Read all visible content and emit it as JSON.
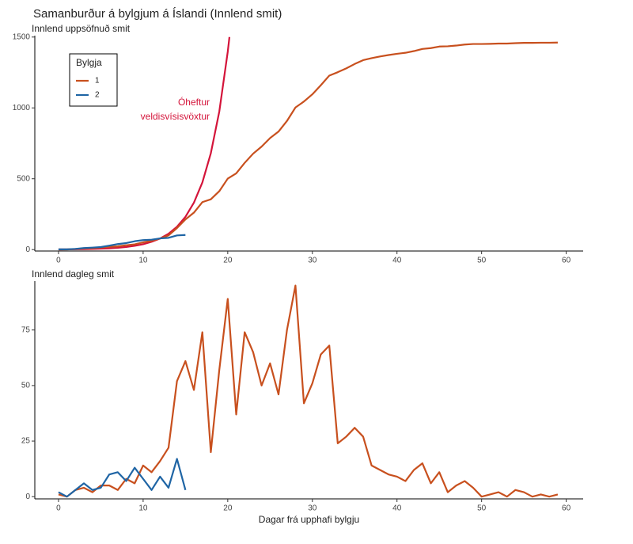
{
  "title": "Samanburður á bylgjum á Íslandi (Innlend smit)",
  "chart_data": [
    {
      "type": "line",
      "subtitle": "Innlend uppsöfnuð smit",
      "xlim": [
        -2.8,
        62
      ],
      "xticks": [
        0,
        10,
        20,
        30,
        40,
        50,
        60
      ],
      "ylim": [
        -10,
        1510
      ],
      "yticks": [
        0,
        500,
        1000,
        1500
      ],
      "legend": {
        "title": "Bylgja",
        "position": "top-left"
      },
      "series": [
        {
          "name": "1",
          "color": "#c8501e",
          "x": [
            0,
            1,
            2,
            3,
            4,
            5,
            6,
            7,
            8,
            9,
            10,
            11,
            12,
            13,
            14,
            15,
            16,
            17,
            18,
            19,
            20,
            21,
            22,
            23,
            24,
            25,
            26,
            27,
            28,
            29,
            30,
            31,
            32,
            33,
            34,
            35,
            36,
            37,
            38,
            39,
            40,
            41,
            42,
            43,
            44,
            45,
            46,
            47,
            48,
            49,
            50,
            51,
            52,
            53,
            54,
            55,
            56,
            57,
            58,
            59
          ],
          "values": [
            1,
            1,
            4,
            8,
            10,
            15,
            20,
            23,
            31,
            37,
            51,
            62,
            78,
            100,
            152,
            213,
            261,
            335,
            355,
            412,
            501,
            538,
            612,
            677,
            727,
            787,
            833,
            908,
            1003,
            1045,
            1096,
            1160,
            1228,
            1252,
            1279,
            1310,
            1337,
            1351,
            1363,
            1373,
            1382,
            1389,
            1401,
            1416,
            1422,
            1433,
            1435,
            1440,
            1447,
            1451,
            1451,
            1452,
            1454,
            1454,
            1457,
            1459,
            1459,
            1460,
            1460,
            1461
          ]
        },
        {
          "name": "2",
          "color": "#1f65a5",
          "x": [
            0,
            1,
            2,
            3,
            4,
            5,
            6,
            7,
            8,
            9,
            10,
            11,
            12,
            13,
            14,
            15
          ],
          "values": [
            2,
            2,
            5,
            11,
            14,
            18,
            28,
            39,
            46,
            59,
            67,
            70,
            79,
            83,
            100,
            103
          ]
        }
      ],
      "curve": {
        "color": "#d4143a",
        "x": [
          0,
          1,
          2,
          3,
          4,
          5,
          6,
          7,
          8,
          9,
          10,
          11,
          12,
          13,
          14,
          15,
          16,
          17,
          18,
          19,
          20,
          20.2
        ],
        "values": [
          1.05,
          1.5,
          2.1,
          3.1,
          4.4,
          6.3,
          9,
          12.9,
          18.5,
          26.5,
          38,
          55,
          78,
          112,
          161,
          231,
          331,
          474,
          680,
          974,
          1396,
          1500
        ]
      },
      "annotation": [
        "Óheftur",
        "veldisvísisvöxtur"
      ]
    },
    {
      "type": "line",
      "subtitle": "Innlend dagleg smit",
      "x_label": "Dagar frá upphafi bylgju",
      "xlim": [
        -2.8,
        62
      ],
      "xticks": [
        0,
        10,
        20,
        30,
        40,
        50,
        60
      ],
      "ylim": [
        -1,
        97
      ],
      "yticks": [
        0,
        25,
        50,
        75
      ],
      "series": [
        {
          "name": "1",
          "color": "#c8501e",
          "x": [
            0,
            1,
            2,
            3,
            4,
            5,
            6,
            7,
            8,
            9,
            10,
            11,
            12,
            13,
            14,
            15,
            16,
            17,
            18,
            19,
            20,
            21,
            22,
            23,
            24,
            25,
            26,
            27,
            28,
            29,
            30,
            31,
            32,
            33,
            34,
            35,
            36,
            37,
            38,
            39,
            40,
            41,
            42,
            43,
            44,
            45,
            46,
            47,
            48,
            49,
            50,
            51,
            52,
            53,
            54,
            55,
            56,
            57,
            58,
            59
          ],
          "values": [
            1,
            0,
            3,
            4,
            2,
            5,
            5,
            3,
            8,
            6,
            14,
            11,
            16,
            22,
            52,
            61,
            48,
            74,
            20,
            57,
            89,
            37,
            74,
            65,
            50,
            60,
            46,
            75,
            95,
            42,
            51,
            64,
            68,
            24,
            27,
            31,
            27,
            14,
            12,
            10,
            9,
            7,
            12,
            15,
            6,
            11,
            2,
            5,
            7,
            4,
            0,
            1,
            2,
            0,
            3,
            2,
            0,
            1,
            0,
            1
          ]
        },
        {
          "name": "2",
          "color": "#1f65a5",
          "x": [
            0,
            1,
            2,
            3,
            4,
            5,
            6,
            7,
            8,
            9,
            10,
            11,
            12,
            13,
            14,
            15
          ],
          "values": [
            2,
            0,
            3,
            6,
            3,
            4,
            10,
            11,
            7,
            13,
            8,
            3,
            9,
            4,
            17,
            3
          ]
        }
      ]
    }
  ]
}
